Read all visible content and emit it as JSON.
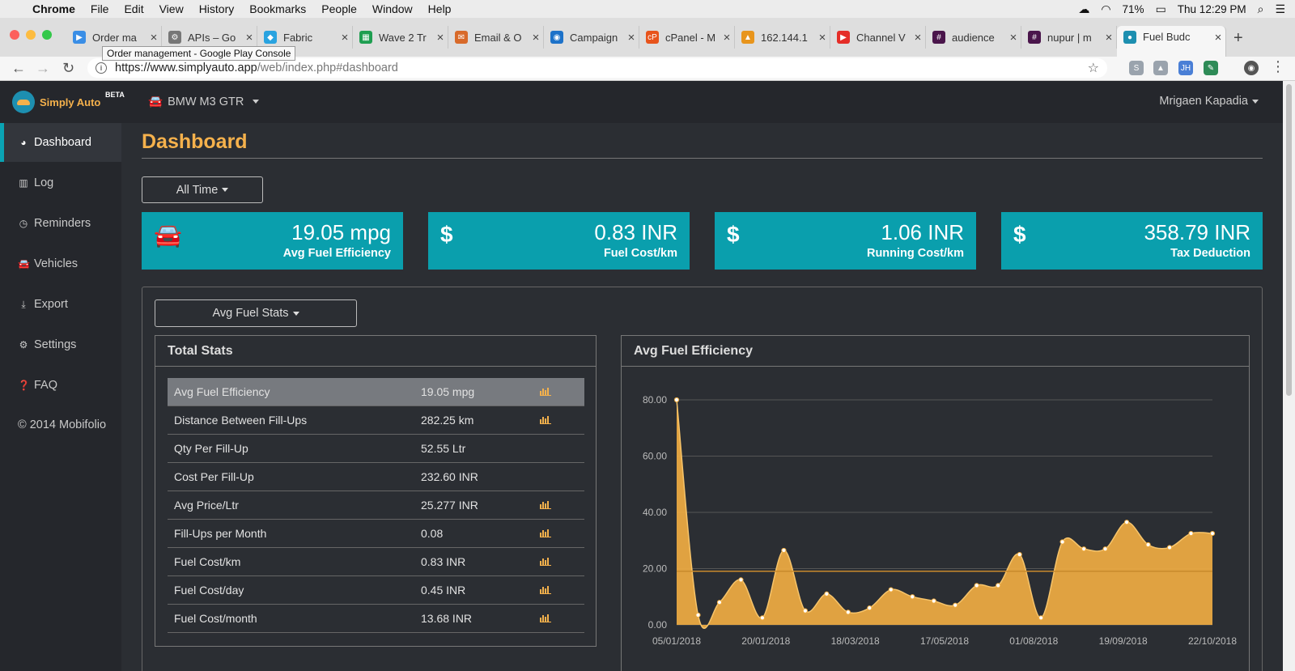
{
  "macos": {
    "app_name": "Chrome",
    "menus": [
      "File",
      "Edit",
      "View",
      "History",
      "Bookmarks",
      "People",
      "Window",
      "Help"
    ],
    "battery": "71%",
    "clock": "Thu 12:29 PM"
  },
  "browser": {
    "tabs": [
      {
        "label": "Order ma",
        "color": "#3a8ee6",
        "glyph": "▶"
      },
      {
        "label": "APIs – Go",
        "color": "#777777",
        "glyph": "⚙"
      },
      {
        "label": "Fabric",
        "color": "#29a3e0",
        "glyph": "◆"
      },
      {
        "label": "Wave 2 Tr",
        "color": "#1e9e50",
        "glyph": "▦"
      },
      {
        "label": "Email & O",
        "color": "#d86a2a",
        "glyph": "✉"
      },
      {
        "label": "Campaign",
        "color": "#1d72c9",
        "glyph": "◉"
      },
      {
        "label": "cPanel - M",
        "color": "#e8541c",
        "glyph": "cP"
      },
      {
        "label": "162.144.1",
        "color": "#e8951c",
        "glyph": "▲"
      },
      {
        "label": "Channel V",
        "color": "#e52d27",
        "glyph": "▶"
      },
      {
        "label": "audience",
        "color": "#4a154b",
        "glyph": "#"
      },
      {
        "label": "nupur | m",
        "color": "#4a154b",
        "glyph": "#"
      },
      {
        "label": "Fuel Budc",
        "color": "#1d8fb0",
        "glyph": "●"
      }
    ],
    "tooltip": "Order management - Google Play Console",
    "url_host": "https://www.simplyauto.app",
    "url_path": "/web/index.php#dashboard"
  },
  "app": {
    "brand": "Simply Auto",
    "beta": "BETA",
    "vehicle": "BMW M3 GTR",
    "user": "Mrigaen Kapadia"
  },
  "sidebar": {
    "items": [
      {
        "label": "Dashboard",
        "icon": "dashboard-icon",
        "glyph": "◕"
      },
      {
        "label": "Log",
        "icon": "bar-chart-icon",
        "glyph": "▥"
      },
      {
        "label": "Reminders",
        "icon": "clock-icon",
        "glyph": "◷"
      },
      {
        "label": "Vehicles",
        "icon": "car-icon",
        "glyph": "🚘"
      },
      {
        "label": "Export",
        "icon": "download-icon",
        "glyph": "⤓"
      },
      {
        "label": "Settings",
        "icon": "gear-icon",
        "glyph": "⚙"
      },
      {
        "label": "FAQ",
        "icon": "question-icon",
        "glyph": "❓"
      }
    ],
    "copyright": "© 2014 Mobifolio"
  },
  "main": {
    "title": "Dashboard",
    "period_button": "All Time",
    "cards": [
      {
        "value": "19.05 mpg",
        "label": "Avg Fuel Efficiency",
        "icon": "car-icon"
      },
      {
        "value": "0.83 INR",
        "label": "Fuel Cost/km",
        "icon": "dollar-icon"
      },
      {
        "value": "1.06 INR",
        "label": "Running Cost/km",
        "icon": "dollar-icon"
      },
      {
        "value": "358.79 INR",
        "label": "Tax Deduction",
        "icon": "dollar-icon"
      }
    ],
    "stats_selector": "Avg Fuel Stats",
    "total_stats": {
      "title": "Total Stats",
      "rows": [
        {
          "label": "Avg Fuel Efficiency",
          "value": "19.05 mpg",
          "chart": true
        },
        {
          "label": "Distance Between Fill-Ups",
          "value": "282.25 km",
          "chart": true
        },
        {
          "label": "Qty Per Fill-Up",
          "value": "52.55 Ltr",
          "chart": false
        },
        {
          "label": "Cost Per Fill-Up",
          "value": "232.60 INR",
          "chart": false
        },
        {
          "label": "Avg Price/Ltr",
          "value": "25.277 INR",
          "chart": true
        },
        {
          "label": "Fill-Ups per Month",
          "value": "0.08",
          "chart": true
        },
        {
          "label": "Fuel Cost/km",
          "value": "0.83 INR",
          "chart": true
        },
        {
          "label": "Fuel Cost/day",
          "value": "0.45 INR",
          "chart": true
        },
        {
          "label": "Fuel Cost/month",
          "value": "13.68 INR",
          "chart": true
        }
      ]
    }
  },
  "chart_data": {
    "type": "area",
    "title": "Avg Fuel Efficiency",
    "xlabel": "",
    "ylabel": "",
    "ylim": [
      0,
      80
    ],
    "yticks": [
      "0.00",
      "20.00",
      "40.00",
      "60.00",
      "80.00"
    ],
    "xticks": [
      "05/01/2018",
      "20/01/2018",
      "18/03/2018",
      "17/05/2018",
      "01/08/2018",
      "19/09/2018",
      "22/10/2018"
    ],
    "values": [
      80,
      3.5,
      8,
      16,
      2.5,
      26.5,
      5,
      11,
      4.5,
      6,
      12.5,
      10,
      8.5,
      7,
      14,
      14,
      25,
      2.5,
      29.5,
      27,
      27,
      36.5,
      28.5,
      27.5,
      32.5,
      32.5
    ],
    "average": 19.05,
    "color": "#f0ad42",
    "grid": true
  }
}
